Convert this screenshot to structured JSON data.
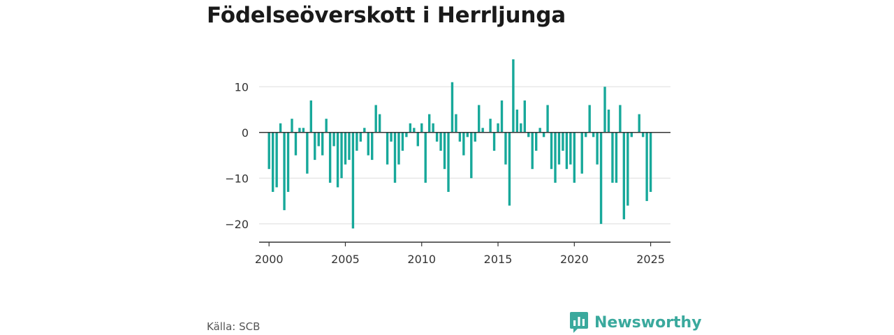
{
  "title": "Födelseöverskott i Herrljunga",
  "source": "Källa: SCB",
  "brand": {
    "name": "Newsworthy",
    "icon": "bar-chart-bubble-icon",
    "color": "#3aa99d"
  },
  "chart_data": {
    "type": "bar",
    "bar_color": "#17a89a",
    "ylim": [
      -24,
      16
    ],
    "xlim": [
      1999.35,
      2026.3
    ],
    "yticks": [
      10,
      0,
      -10,
      -20
    ],
    "ytick_labels": [
      "10",
      "0",
      "−10",
      "−20"
    ],
    "xticks": [
      2000,
      2005,
      2010,
      2015,
      2020,
      2025
    ],
    "xtick_labels": [
      "2000",
      "2005",
      "2010",
      "2015",
      "2020",
      "2025"
    ],
    "x_start": 2000,
    "periods_per_year": 4,
    "values": [
      -8,
      -13,
      -12,
      2,
      -17,
      -13,
      3,
      -5,
      1,
      1,
      -9,
      7,
      -6,
      -3,
      -5,
      3,
      -11,
      -3,
      -12,
      -10,
      -7,
      -6,
      -21,
      -4,
      -2,
      1,
      -5,
      -6,
      6,
      4,
      0,
      -7,
      -2,
      -11,
      -7,
      -4,
      -1,
      2,
      1,
      -3,
      2,
      -11,
      4,
      2,
      -2,
      -4,
      -8,
      -13,
      11,
      4,
      -2,
      -5,
      -1,
      -10,
      -2,
      6,
      1,
      0,
      3,
      -4,
      2,
      7,
      -7,
      -16,
      16,
      5,
      2,
      7,
      -1,
      -8,
      -4,
      1,
      -1,
      6,
      -8,
      -11,
      -7,
      -4,
      -8,
      -7,
      -11,
      0,
      -9,
      -1,
      6,
      -1,
      -7,
      -20,
      10,
      5,
      -11,
      -11,
      6,
      -19,
      -16,
      -1,
      0,
      4,
      -1,
      -15,
      -13
    ]
  }
}
